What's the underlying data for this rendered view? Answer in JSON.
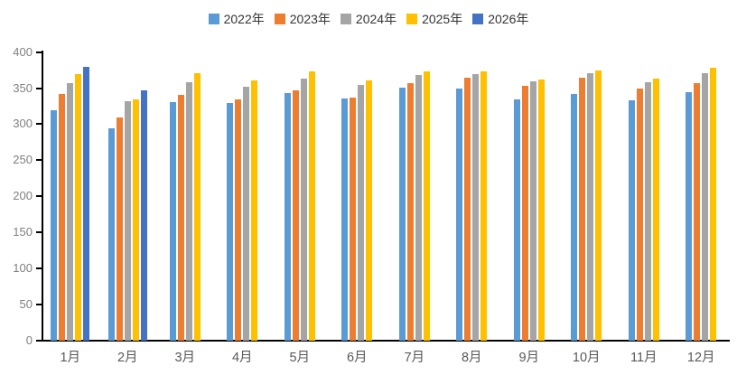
{
  "chart_data": {
    "type": "bar",
    "title": "",
    "xlabel": "",
    "ylabel": "",
    "categories": [
      "1月",
      "2月",
      "3月",
      "4月",
      "5月",
      "6月",
      "7月",
      "8月",
      "9月",
      "10月",
      "11月",
      "12月"
    ],
    "series": [
      {
        "name": "2022年",
        "color": "#5B9BD5",
        "values": [
          320,
          294,
          331,
          330,
          343,
          336,
          351,
          350,
          335,
          342,
          333,
          344
        ]
      },
      {
        "name": "2023年",
        "color": "#ED7D31",
        "values": [
          342,
          309,
          341,
          335,
          347,
          337,
          357,
          364,
          353,
          365,
          350,
          357
        ]
      },
      {
        "name": "2024年",
        "color": "#A5A5A5",
        "values": [
          357,
          332,
          358,
          352,
          363,
          355,
          368,
          369,
          359,
          371,
          358,
          371
        ]
      },
      {
        "name": "2025年",
        "color": "#FFC000",
        "values": [
          369,
          334,
          371,
          361,
          373,
          361,
          373,
          373,
          362,
          374,
          363,
          378
        ]
      },
      {
        "name": "2026年",
        "color": "#4472C4",
        "values": [
          380,
          347,
          null,
          null,
          null,
          null,
          null,
          null,
          null,
          null,
          null,
          null
        ]
      }
    ],
    "ylim": [
      0,
      400
    ],
    "ytick_step": 50,
    "y_ticks": [
      "0",
      "50",
      "100",
      "150",
      "200",
      "250",
      "300",
      "350",
      "400"
    ],
    "grid": false,
    "legend_position": "top",
    "axis_color": "#000000",
    "ytick_label_color": "#808080",
    "xtick_label_color": "#595959",
    "background_color": "#ffffff"
  }
}
